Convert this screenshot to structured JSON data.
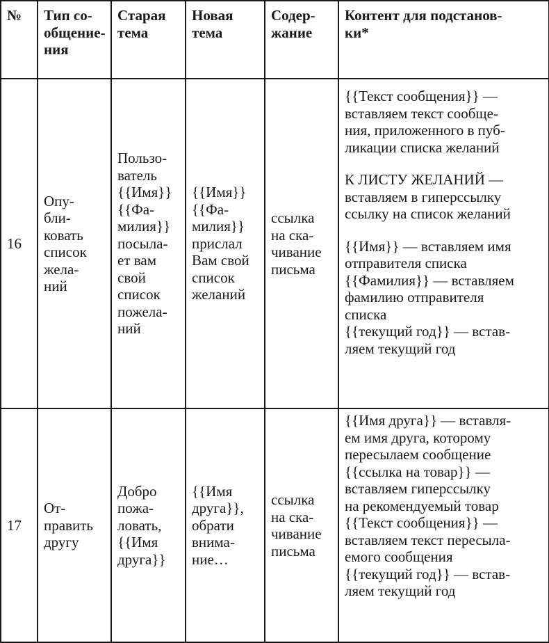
{
  "table": {
    "headers": [
      [
        "№"
      ],
      [
        "Тип со-",
        "общение-",
        "ния"
      ],
      [
        "Старая",
        "тема"
      ],
      [
        "Новая",
        "тема"
      ],
      [
        "Содер-",
        "жание"
      ],
      [
        "Контент для подстанов-",
        "ки*"
      ]
    ],
    "rows": [
      {
        "number": "16",
        "type": [
          "Опу-",
          "бли-",
          "ковать",
          "список",
          "жела-",
          "ний"
        ],
        "old_subject": [
          "Пользо-",
          "ватель",
          "{{Имя}}",
          "{{Фа-",
          "милия}}",
          "посыла-",
          "ет вам",
          "свой",
          "список",
          "пожела-",
          "ний"
        ],
        "new_subject": [
          "{{Имя}}",
          "{{Фа-",
          "милия}}",
          "прислал",
          "Вам свой",
          "список",
          "желаний"
        ],
        "body": [
          "ссылка",
          "на ска-",
          "чивание",
          "письма"
        ],
        "content": [
          [
            "{{Текст сообщения}} —",
            "вставляем текст сообще-",
            "ния, приложенного в пуб-",
            "ликации списка желаний"
          ],
          [
            "К ЛИСТУ ЖЕЛАНИЙ —",
            "вставляем в гиперссылку",
            "ссылку на список желаний"
          ],
          [
            "{{Имя}} — вставляем имя",
            "отправителя списка",
            "{{Фамилия}} — вставляем",
            "фамилию отправителя",
            "списка",
            "{{текущий год}} — встав-",
            "ляем текущий год"
          ]
        ]
      },
      {
        "number": "17",
        "type": [
          "От-",
          "править",
          "другу"
        ],
        "old_subject": [
          "Добро",
          "пожа-",
          "ловать,",
          "{{Имя",
          "друга}}"
        ],
        "new_subject": [
          "{{Имя",
          "друга}},",
          "обрати",
          "внима-",
          "ние…"
        ],
        "body": [
          "ссылка",
          "на ска-",
          "чивание",
          "письма"
        ],
        "content": [
          [
            "{{Имя друга}} — вставля-",
            "ем имя друга, которому",
            "пересылаем сообщение",
            "{{ссылка на товар}} —",
            "вставляем гиперссылку",
            "на рекомендуемый товар",
            "{{Текст сообщения}} —",
            "вставляем текст пересыла-",
            "емого сообщения",
            "{{текущий год}} — встав-",
            "ляем текущий год"
          ]
        ]
      }
    ]
  }
}
